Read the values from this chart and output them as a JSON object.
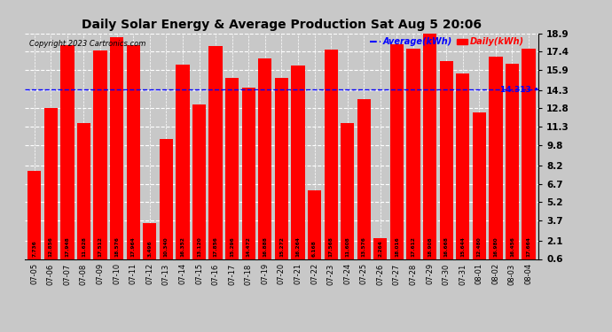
{
  "title": "Daily Solar Energy & Average Production Sat Aug 5 20:06",
  "copyright": "Copyright 2023 Cartronics.com",
  "average_label": "Average(kWh)",
  "daily_label": "Daily(kWh)",
  "average_value": 14.313,
  "bar_color": "#ff0000",
  "average_line_color": "#0000ff",
  "background_color": "#c8c8c8",
  "plot_bg_color": "#c8c8c8",
  "grid_color": "#ffffff",
  "ylim": [
    0.6,
    18.9
  ],
  "yticks": [
    0.6,
    2.1,
    3.7,
    5.2,
    6.7,
    8.2,
    9.8,
    11.3,
    12.8,
    14.3,
    15.9,
    17.4,
    18.9
  ],
  "categories": [
    "07-05",
    "07-06",
    "07-07",
    "07-08",
    "07-09",
    "07-10",
    "07-11",
    "07-12",
    "07-13",
    "07-14",
    "07-15",
    "07-16",
    "07-17",
    "07-18",
    "07-19",
    "07-20",
    "07-21",
    "07-22",
    "07-23",
    "07-24",
    "07-25",
    "07-26",
    "07-27",
    "07-28",
    "07-29",
    "07-30",
    "07-31",
    "08-01",
    "08-02",
    "08-03",
    "08-04"
  ],
  "values": [
    7.736,
    12.856,
    17.948,
    11.628,
    17.512,
    18.576,
    17.964,
    3.496,
    10.34,
    16.352,
    13.12,
    17.856,
    15.296,
    14.472,
    16.888,
    15.272,
    16.264,
    6.168,
    17.568,
    11.608,
    13.576,
    2.264,
    18.016,
    17.612,
    18.908,
    16.668,
    15.644,
    12.48,
    16.98,
    16.456,
    17.664
  ]
}
